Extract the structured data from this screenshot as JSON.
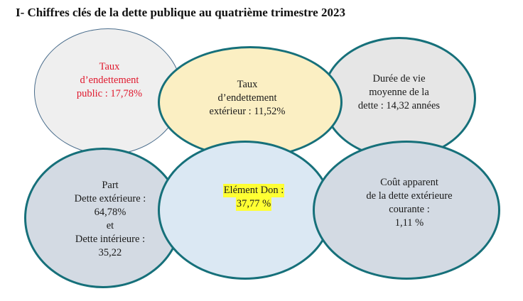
{
  "title": "I- Chiffres clés de la dette publique au quatrième trimestre 2023",
  "nodes": {
    "taux_public": {
      "lines": [
        "Taux",
        "d’endettement",
        "public : 17,78%"
      ],
      "color": "#e0182d"
    },
    "taux_exterieur": {
      "lines": [
        "Taux",
        "d’endettement",
        "extérieur : 11,52%"
      ]
    },
    "duree_vie": {
      "lines": [
        "Durée de vie",
        "moyenne de la",
        "dette : 14,32 années"
      ]
    },
    "part_dette": {
      "lines": [
        "Part",
        "Dette extérieure :",
        "64,78%",
        "et",
        "Dette intérieure :",
        "35,22"
      ]
    },
    "element_don": {
      "lines": [
        "Elément Don :",
        "37,77 %"
      ],
      "highlight_color": "#ffff33"
    },
    "cout_apparent": {
      "lines": [
        "Coût apparent",
        "de la dette extérieure",
        "courante :",
        "1,11 %"
      ]
    }
  },
  "colors": {
    "border_teal": "#16707a",
    "border_thin": "#4a6d8c",
    "fill_grey": "#efefef",
    "fill_yellow": "#fbefc3",
    "fill_light_blue": "#dbe8f3",
    "fill_slate": "#d3dae3"
  }
}
